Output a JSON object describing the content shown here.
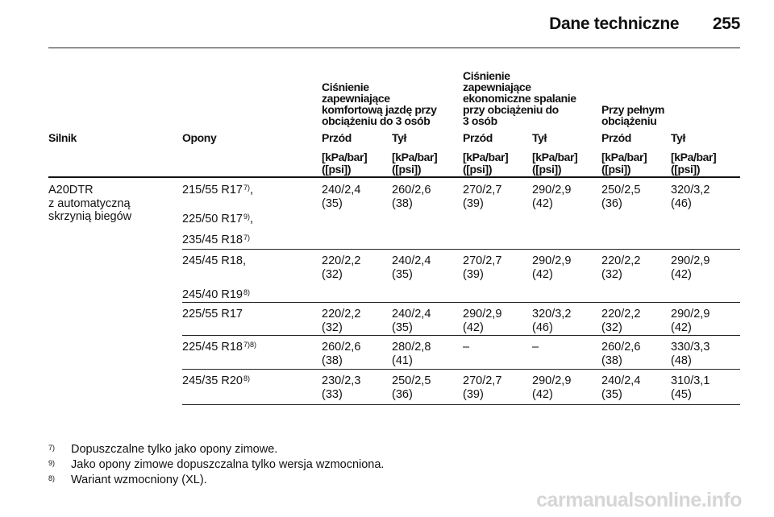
{
  "header": {
    "title": "Dane techniczne",
    "page_number": "255"
  },
  "groups": [
    "Ciśnienie\nzapewniające\nkomfortową jazdę przy\nobciążeniu do 3 osób",
    "Ciśnienie\nzapewniające\nekonomiczne spalanie\nprzy obciążeniu do\n3 osób",
    "Przy pełnym\nobciążeniu"
  ],
  "columns": {
    "engine": "Silnik",
    "tyres": "Opony",
    "positions": [
      "Przód",
      "Tył",
      "Przód",
      "Tył",
      "Przód",
      "Tył"
    ],
    "unit": "[kPa/bar]\n([psi])"
  },
  "engine_name": "A20DTR\nz automatyczną\nskrzynią biegów",
  "rows": [
    {
      "tyre_lines": [
        {
          "text": "215/55 R17",
          "sup": "7)",
          "suffix": ","
        },
        {
          "text": "225/50 R17",
          "sup": "9)",
          "suffix": ","
        },
        {
          "text": "235/45 R18",
          "sup": "7)",
          "suffix": ""
        }
      ],
      "values": [
        [
          "240/2,4",
          "(35)"
        ],
        [
          "260/2,6",
          "(38)"
        ],
        [
          "270/2,7",
          "(39)"
        ],
        [
          "290/2,9",
          "(42)"
        ],
        [
          "250/2,5",
          "(36)"
        ],
        [
          "320/3,2",
          "(46)"
        ]
      ]
    },
    {
      "tyre_lines": [
        {
          "text": "245/45 R18,",
          "sup": "",
          "suffix": ""
        },
        {
          "text": "245/40 R19",
          "sup": "8)",
          "suffix": ""
        }
      ],
      "values": [
        [
          "220/2,2",
          "(32)"
        ],
        [
          "240/2,4",
          "(35)"
        ],
        [
          "270/2,7",
          "(39)"
        ],
        [
          "290/2,9",
          "(42)"
        ],
        [
          "220/2,2",
          "(32)"
        ],
        [
          "290/2,9",
          "(42)"
        ]
      ]
    },
    {
      "tyre_lines": [
        {
          "text": "225/55 R17",
          "sup": "",
          "suffix": ""
        }
      ],
      "values": [
        [
          "220/2,2",
          "(32)"
        ],
        [
          "240/2,4",
          "(35)"
        ],
        [
          "290/2,9",
          "(42)"
        ],
        [
          "320/3,2",
          "(46)"
        ],
        [
          "220/2,2",
          "(32)"
        ],
        [
          "290/2,9",
          "(42)"
        ]
      ]
    },
    {
      "tyre_lines": [
        {
          "text": "225/45 R18",
          "sup": "7)8)",
          "suffix": ""
        }
      ],
      "values": [
        [
          "260/2,6",
          "(38)"
        ],
        [
          "280/2,8",
          "(41)"
        ],
        [
          "–",
          ""
        ],
        [
          "–",
          ""
        ],
        [
          "260/2,6",
          "(38)"
        ],
        [
          "330/3,3",
          "(48)"
        ]
      ]
    },
    {
      "tyre_lines": [
        {
          "text": "245/35 R20",
          "sup": "8)",
          "suffix": ""
        }
      ],
      "values": [
        [
          "230/2,3",
          "(33)"
        ],
        [
          "250/2,5",
          "(36)"
        ],
        [
          "270/2,7",
          "(39)"
        ],
        [
          "290/2,9",
          "(42)"
        ],
        [
          "240/2,4",
          "(35)"
        ],
        [
          "310/3,1",
          "(45)"
        ]
      ]
    }
  ],
  "footnotes": [
    {
      "mark": "7)",
      "text": "Dopuszczalne tylko jako opony zimowe."
    },
    {
      "mark": "9)",
      "text": "Jako opony zimowe dopuszczalna tylko wersja wzmocniona."
    },
    {
      "mark": "8)",
      "text": "Wariant wzmocniony (XL)."
    }
  ],
  "watermark": "carmanualsonline.info"
}
